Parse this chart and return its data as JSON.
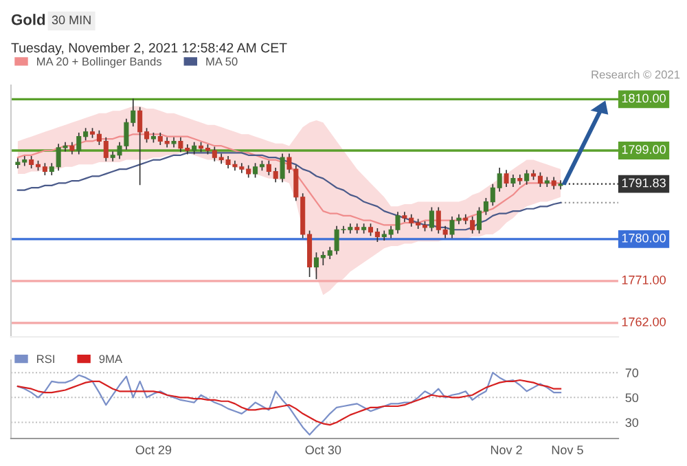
{
  "chart_data": [
    {
      "type": "candlestick",
      "title": "Gold",
      "subtitle": "Tuesday, November 2, 2021 12:58:42 AM CET",
      "annotations": [
        "30 MIN",
        "Research © 2021"
      ],
      "categories": [
        null,
        null,
        null,
        null,
        null,
        null,
        null,
        null,
        null,
        null,
        null,
        null,
        null,
        null,
        null,
        null,
        null,
        null,
        null,
        null,
        null,
        null,
        null,
        null,
        null,
        null,
        null,
        null,
        null,
        null,
        null,
        null,
        null,
        null,
        null,
        null,
        null,
        null,
        null,
        null,
        null,
        null,
        null,
        null,
        null,
        null,
        null,
        null,
        null,
        null,
        null,
        null,
        null,
        null,
        null,
        null,
        null,
        null,
        null,
        null,
        null,
        null,
        null,
        null,
        null,
        null,
        null,
        null,
        null,
        null,
        null,
        null,
        null,
        null,
        null,
        null,
        null,
        null,
        null,
        null,
        null,
        null,
        null,
        null,
        null,
        null,
        null,
        null,
        null
      ],
      "ohlc": [
        [
          1796,
          1797.2,
          1795.3,
          1796.5
        ],
        [
          1796.5,
          1797.7,
          1795.8,
          1797
        ],
        [
          1797,
          1797.7,
          1795.3,
          1796
        ],
        [
          1796,
          1796.7,
          1794.8,
          1795.5
        ],
        [
          1795.5,
          1796.2,
          1793.8,
          1794.5
        ],
        [
          1794.5,
          1796.2,
          1793.8,
          1795.5
        ],
        [
          1795.5,
          1800.3,
          1794.8,
          1799.6
        ],
        [
          1799.6,
          1800.7,
          1798.9,
          1800
        ],
        [
          1800,
          1800.7,
          1798.3,
          1799
        ],
        [
          1799,
          1802.7,
          1798.3,
          1802
        ],
        [
          1802,
          1803.7,
          1801.3,
          1803
        ],
        [
          1803,
          1803.7,
          1801.8,
          1802.5
        ],
        [
          1802.5,
          1803.2,
          1800.3,
          1801
        ],
        [
          1801,
          1801.7,
          1796.8,
          1797.5
        ],
        [
          1797.5,
          1798.7,
          1796.8,
          1798
        ],
        [
          1798,
          1800.7,
          1797.3,
          1800
        ],
        [
          1800,
          1805.7,
          1799.3,
          1805
        ],
        [
          1805,
          1810,
          1804.3,
          1807.5
        ],
        [
          1807.5,
          1808.2,
          1791.7,
          1803
        ],
        [
          1803,
          1803.7,
          1800.8,
          1801.5
        ],
        [
          1801.5,
          1802.7,
          1800.8,
          1802
        ],
        [
          1802,
          1802.7,
          1800.3,
          1801
        ],
        [
          1801,
          1801.7,
          1799.8,
          1800.5
        ],
        [
          1800.5,
          1801.7,
          1799.8,
          1801
        ],
        [
          1801,
          1801.7,
          1798.8,
          1799.5
        ],
        [
          1799.5,
          1800.2,
          1798.3,
          1799
        ],
        [
          1799,
          1800.7,
          1798.3,
          1800
        ],
        [
          1800,
          1800.7,
          1798.8,
          1799.5
        ],
        [
          1799.5,
          1800.2,
          1798.3,
          1799
        ],
        [
          1799,
          1799.7,
          1796.8,
          1797.5
        ],
        [
          1797.5,
          1798.2,
          1796.3,
          1797
        ],
        [
          1797,
          1797.7,
          1795.3,
          1796
        ],
        [
          1796,
          1796.7,
          1794.8,
          1795.5
        ],
        [
          1795.5,
          1796.2,
          1794.3,
          1795
        ],
        [
          1795,
          1795.7,
          1793.3,
          1794
        ],
        [
          1794,
          1796.2,
          1793.3,
          1795.5
        ],
        [
          1795.5,
          1796.7,
          1794.8,
          1796
        ],
        [
          1796,
          1796.7,
          1793.8,
          1794.5
        ],
        [
          1794.5,
          1795.2,
          1792.3,
          1793
        ],
        [
          1793,
          1798.2,
          1792.3,
          1797.5
        ],
        [
          1797.5,
          1798.2,
          1794.3,
          1795
        ],
        [
          1795,
          1795.7,
          1788.3,
          1789
        ],
        [
          1789,
          1789.7,
          1780.3,
          1781
        ],
        [
          1781,
          1781.7,
          1772,
          1774
        ],
        [
          1774,
          1777,
          1771.5,
          1776
        ],
        [
          1776,
          1777.2,
          1774.5,
          1776.5
        ],
        [
          1776.5,
          1778.2,
          1775.8,
          1777.5
        ],
        [
          1777.5,
          1782.7,
          1776.8,
          1782
        ],
        [
          1782,
          1782.7,
          1781.3,
          1782
        ],
        [
          1782,
          1783.2,
          1781.3,
          1782.5
        ],
        [
          1782.5,
          1783.2,
          1781.3,
          1782
        ],
        [
          1782,
          1783.2,
          1781.3,
          1782.5
        ],
        [
          1782.5,
          1783.2,
          1780.8,
          1781.5
        ],
        [
          1781.5,
          1782.2,
          1779.5,
          1780.5
        ],
        [
          1780.5,
          1781.7,
          1779.8,
          1781
        ],
        [
          1781,
          1782.7,
          1780.3,
          1782
        ],
        [
          1782,
          1785.7,
          1781.3,
          1785
        ],
        [
          1785,
          1785.7,
          1783.8,
          1784.5
        ],
        [
          1784.5,
          1785.2,
          1782.8,
          1783.5
        ],
        [
          1783.5,
          1784.2,
          1782.3,
          1783
        ],
        [
          1783,
          1783.7,
          1781.8,
          1782.5
        ],
        [
          1782.5,
          1786.7,
          1781.8,
          1786
        ],
        [
          1786,
          1786.7,
          1781.3,
          1782
        ],
        [
          1782,
          1782.7,
          1780.3,
          1781
        ],
        [
          1781,
          1784.7,
          1780.3,
          1784
        ],
        [
          1784,
          1785.2,
          1783.3,
          1784.5
        ],
        [
          1784.5,
          1785.2,
          1783.3,
          1784
        ],
        [
          1784,
          1784.7,
          1781.3,
          1782
        ],
        [
          1782,
          1786.7,
          1781.3,
          1786
        ],
        [
          1786,
          1788.7,
          1785.3,
          1788
        ],
        [
          1788,
          1791.7,
          1787.3,
          1791
        ],
        [
          1791,
          1795.2,
          1790.3,
          1794
        ],
        [
          1794,
          1794.7,
          1791.3,
          1792
        ],
        [
          1792,
          1793.7,
          1791.3,
          1793
        ],
        [
          1793,
          1793.7,
          1791.8,
          1792.5
        ],
        [
          1792.5,
          1794.7,
          1791.8,
          1794
        ],
        [
          1794,
          1794.7,
          1792.8,
          1793.5
        ],
        [
          1793.5,
          1794.2,
          1791.3,
          1792
        ],
        [
          1792,
          1793.2,
          1791.3,
          1792.5
        ],
        [
          1792.5,
          1793.2,
          1790.8,
          1791.5
        ],
        [
          1791.5,
          1792.5,
          1790.8,
          1791.83
        ],
        null,
        null,
        null,
        null,
        null,
        null,
        null,
        null
      ],
      "series": [
        {
          "name": "MA 20 + Bollinger Bands",
          "type": "line",
          "color": "#f08c8c",
          "values": [
            1797.5,
            1798,
            1798,
            1798.5,
            1799,
            1799,
            1799.5,
            1800,
            1800,
            1800.5,
            1801,
            1801,
            1801.5,
            1801.5,
            1801.5,
            1802,
            1802,
            1802.5,
            1802.5,
            1802.5,
            1802.5,
            1802.5,
            1802,
            1802,
            1802,
            1802,
            1801.5,
            1801,
            1800.5,
            1800,
            1800,
            1799.5,
            1799,
            1798.5,
            1798.5,
            1798,
            1797.5,
            1797,
            1797,
            1796.5,
            1796,
            1794,
            1792,
            1790,
            1788,
            1786,
            1785.5,
            1785.5,
            1785,
            1785,
            1784.5,
            1784,
            1784,
            1783.5,
            1783,
            1783,
            1783,
            1783.5,
            1783.5,
            1783.5,
            1784,
            1784,
            1784,
            1784,
            1784,
            1784,
            1784.5,
            1785,
            1785.5,
            1786,
            1786.5,
            1787.5,
            1788.5,
            1789.5,
            1791,
            1792,
            1792,
            1792,
            1792,
            1792,
            1792,
            null,
            null,
            null,
            null,
            null,
            null,
            null,
            null
          ],
          "lower": [
            1794,
            1794,
            1794.5,
            1794.5,
            1795,
            1795,
            1795,
            1795.5,
            1795.5,
            1796,
            1796,
            1796,
            1796.5,
            1796.5,
            1796.5,
            1796.5,
            1797,
            1797,
            1797,
            1797,
            1797.5,
            1797.5,
            1798,
            1798,
            1798.5,
            1798.5,
            1798,
            1797.5,
            1797,
            1797,
            1796.5,
            1796,
            1795.5,
            1795,
            1794.5,
            1794,
            1793.5,
            1793,
            1793,
            1792.5,
            1792,
            1788,
            1782,
            1777,
            1772,
            1768,
            1769,
            1770.5,
            1771.5,
            1773,
            1774,
            1775,
            1776,
            1777,
            1778,
            1778.5,
            1778.5,
            1779,
            1779,
            1779.5,
            1779.5,
            1779.5,
            1779.5,
            1780,
            1780,
            1780,
            1780,
            1780.5,
            1780.5,
            1781,
            1781,
            1782,
            1783.5,
            1784.5,
            1786,
            1787,
            1787.5,
            1788,
            1788,
            1788.5,
            1789,
            null,
            null,
            null,
            null,
            null,
            null,
            null,
            null
          ],
          "upper": [
            1801,
            1801.5,
            1802,
            1802.5,
            1803,
            1803.5,
            1804,
            1804.5,
            1805,
            1805.5,
            1806,
            1806.5,
            1807,
            1807,
            1807.5,
            1807.5,
            1808,
            1808.5,
            1808.5,
            1808,
            1808,
            1807.5,
            1807,
            1807,
            1806.5,
            1806,
            1805.5,
            1805,
            1804.5,
            1804.5,
            1804,
            1803.5,
            1803,
            1802.5,
            1802.5,
            1802,
            1801.5,
            1801,
            1800.5,
            1800.5,
            1800,
            1802,
            1804,
            1805,
            1805.5,
            1805,
            1803,
            1801,
            1799,
            1797,
            1795,
            1793.5,
            1792,
            1790.5,
            1789,
            1787,
            1787,
            1787.5,
            1787.5,
            1788,
            1788,
            1788,
            1788,
            1788,
            1788,
            1788,
            1788.5,
            1789.5,
            1790,
            1791,
            1792,
            1793,
            1794,
            1795,
            1796,
            1797,
            1797,
            1796.5,
            1796,
            1795.5,
            1795,
            null,
            null,
            null,
            null,
            null,
            null,
            null,
            null
          ]
        },
        {
          "name": "MA 50",
          "type": "line",
          "color": "#4a5a8a",
          "values": [
            1790.5,
            1790.5,
            1791,
            1791,
            1791.5,
            1791.5,
            1792,
            1792,
            1792.5,
            1792.5,
            1793,
            1793.5,
            1793.5,
            1794,
            1794.5,
            1795,
            1795,
            1795.5,
            1796,
            1796.5,
            1797,
            1797,
            1797.5,
            1798,
            1798,
            1798.5,
            1798.5,
            1798.5,
            1798.5,
            1798.5,
            1798.5,
            1798.5,
            1798.5,
            1798.5,
            1798,
            1798,
            1798,
            1797.5,
            1797.5,
            1797,
            1796.5,
            1796,
            1795,
            1794.5,
            1793.5,
            1793,
            1792,
            1791,
            1790.5,
            1789.5,
            1789,
            1788,
            1787.5,
            1787,
            1786,
            1785.5,
            1785,
            1784.5,
            1784,
            1783.5,
            1783,
            1783,
            1782.5,
            1782.5,
            1782,
            1782,
            1782,
            1782.5,
            1783.5,
            1784,
            1785,
            1785.5,
            1785.5,
            1786,
            1786,
            1786.5,
            1786.5,
            1787,
            1787,
            1787.5,
            1787.8,
            null,
            null,
            null,
            null,
            null,
            null,
            null,
            null
          ]
        }
      ],
      "ref_lines": [
        {
          "axis": "y",
          "value": 1810,
          "label": "1810.00",
          "color": "#5aa02c"
        },
        {
          "axis": "y",
          "value": 1799,
          "label": "1799.00",
          "color": "#5aa02c"
        },
        {
          "axis": "y",
          "value": 1791.83,
          "label": "1791.83",
          "color": "#333333",
          "line_style": "dotted"
        },
        {
          "axis": "y",
          "value": 1787.8,
          "color": "#999999",
          "line_style": "dotted"
        },
        {
          "axis": "y",
          "value": 1780,
          "label": "1780.00",
          "color": "#3a6fd8"
        },
        {
          "axis": "y",
          "value": 1771,
          "label": "1771.00",
          "color": "#f4a7a7"
        },
        {
          "axis": "y",
          "value": 1762,
          "label": "1762.00",
          "color": "#f4a7a7"
        }
      ],
      "ylim": [
        1759,
        1813
      ],
      "tick_labels": false,
      "legend": "top left"
    },
    {
      "type": "line",
      "categories": [
        null,
        null,
        null,
        null,
        null,
        null,
        null,
        null,
        null,
        null,
        null,
        null,
        null,
        null,
        null,
        null,
        null,
        null,
        null,
        null,
        "Oct 29",
        null,
        null,
        null,
        null,
        null,
        null,
        null,
        null,
        null,
        null,
        null,
        null,
        null,
        null,
        null,
        null,
        null,
        null,
        null,
        null,
        null,
        null,
        null,
        null,
        "Oct 30",
        null,
        null,
        null,
        null,
        null,
        null,
        null,
        null,
        null,
        null,
        null,
        null,
        null,
        null,
        null,
        null,
        null,
        null,
        null,
        null,
        null,
        null,
        null,
        null,
        null,
        null,
        "Nov 2",
        null,
        null,
        null,
        null,
        null,
        null,
        null,
        null,
        "Nov 5",
        null,
        null,
        null,
        null,
        null,
        null,
        null
      ],
      "series": [
        {
          "name": "RSI",
          "color": "#7a8fc8",
          "values": [
            59,
            57,
            54,
            50,
            55,
            63,
            62,
            62,
            64,
            68,
            66,
            63,
            54,
            44,
            52,
            60,
            67,
            50,
            63,
            50,
            53,
            55,
            52,
            50,
            48,
            47,
            46,
            52,
            49,
            46,
            44,
            41,
            39,
            37,
            41,
            46,
            43,
            40,
            55,
            48,
            42,
            34,
            26,
            20,
            26,
            31,
            37,
            42,
            43,
            44,
            45,
            42,
            39,
            41,
            43,
            45,
            45,
            46,
            46,
            50,
            55,
            52,
            57,
            50,
            52,
            53,
            55,
            48,
            52,
            55,
            70,
            66,
            63,
            64,
            60,
            55,
            58,
            61,
            58,
            54,
            54,
            null,
            null,
            null,
            null,
            null,
            null,
            null,
            null
          ]
        },
        {
          "name": "9MA",
          "color": "#d62020",
          "values": [
            59,
            58,
            57,
            55,
            54,
            54,
            55,
            56,
            58,
            60,
            62,
            63,
            63,
            60,
            57,
            55,
            55,
            55,
            55,
            55,
            55,
            54,
            52,
            51,
            50,
            50,
            49,
            49,
            48,
            48,
            47,
            47,
            45,
            42,
            40,
            40,
            41,
            41,
            42,
            43,
            44,
            41,
            37,
            34,
            31,
            29,
            28,
            30,
            33,
            36,
            38,
            40,
            42,
            42,
            43,
            43,
            43,
            44,
            46,
            48,
            50,
            52,
            51,
            51,
            50,
            50,
            51,
            52,
            55,
            58,
            60,
            62,
            63,
            63,
            64,
            63,
            62,
            60,
            59,
            57,
            57,
            null,
            null,
            null,
            null,
            null,
            null,
            null,
            null
          ]
        }
      ],
      "ylim": [
        17,
        80
      ],
      "yticks": [
        30,
        50,
        70
      ],
      "grid": "y",
      "legend": "top left",
      "line_style": "solid",
      "marker": "none"
    }
  ]
}
